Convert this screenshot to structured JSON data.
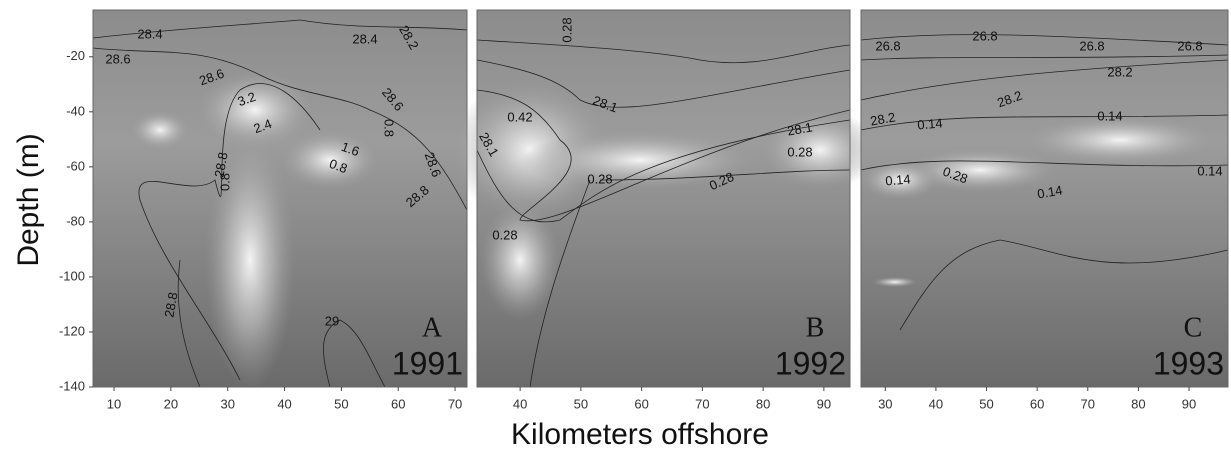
{
  "chart_data": [
    {
      "type": "contour",
      "panel": "A",
      "year": "1991",
      "ylabel": "Depth (m)",
      "xlim": [
        6.3,
        72.1
      ],
      "xticks": [
        10,
        20,
        30,
        40,
        50,
        60,
        70
      ],
      "ylim": [
        -140,
        -3
      ],
      "yticks": [
        -20,
        -40,
        -60,
        -80,
        -100,
        -120,
        -140
      ],
      "contour_labels": [
        28.4,
        28.6,
        28.6,
        28.4,
        28.2,
        3.2,
        2.4,
        28.6,
        0.8,
        1.6,
        0.8,
        28.8,
        0.8,
        28.6,
        28.8,
        28.8,
        29
      ]
    },
    {
      "type": "contour",
      "panel": "B",
      "year": "1992",
      "xlabel": "Kilometers offshore",
      "xlim": [
        32.9,
        94.3
      ],
      "xticks": [
        40,
        50,
        60,
        70,
        80,
        90
      ],
      "ylim": [
        -140,
        -3
      ],
      "contour_labels": [
        0.28,
        28.1,
        0.42,
        28.1,
        0.28,
        28.1,
        0.28,
        0.28,
        0.28
      ]
    },
    {
      "type": "contour",
      "panel": "C",
      "year": "1993",
      "xlim": [
        25.2,
        97.7
      ],
      "xticks": [
        30,
        40,
        50,
        60,
        70,
        80,
        90
      ],
      "ylim": [
        -140,
        -3
      ],
      "contour_labels": [
        26.8,
        26.8,
        26.8,
        26.8,
        28.2,
        28.2,
        28.2,
        0.14,
        0.14,
        0.14,
        0.28,
        0.14,
        0.14
      ]
    }
  ]
}
